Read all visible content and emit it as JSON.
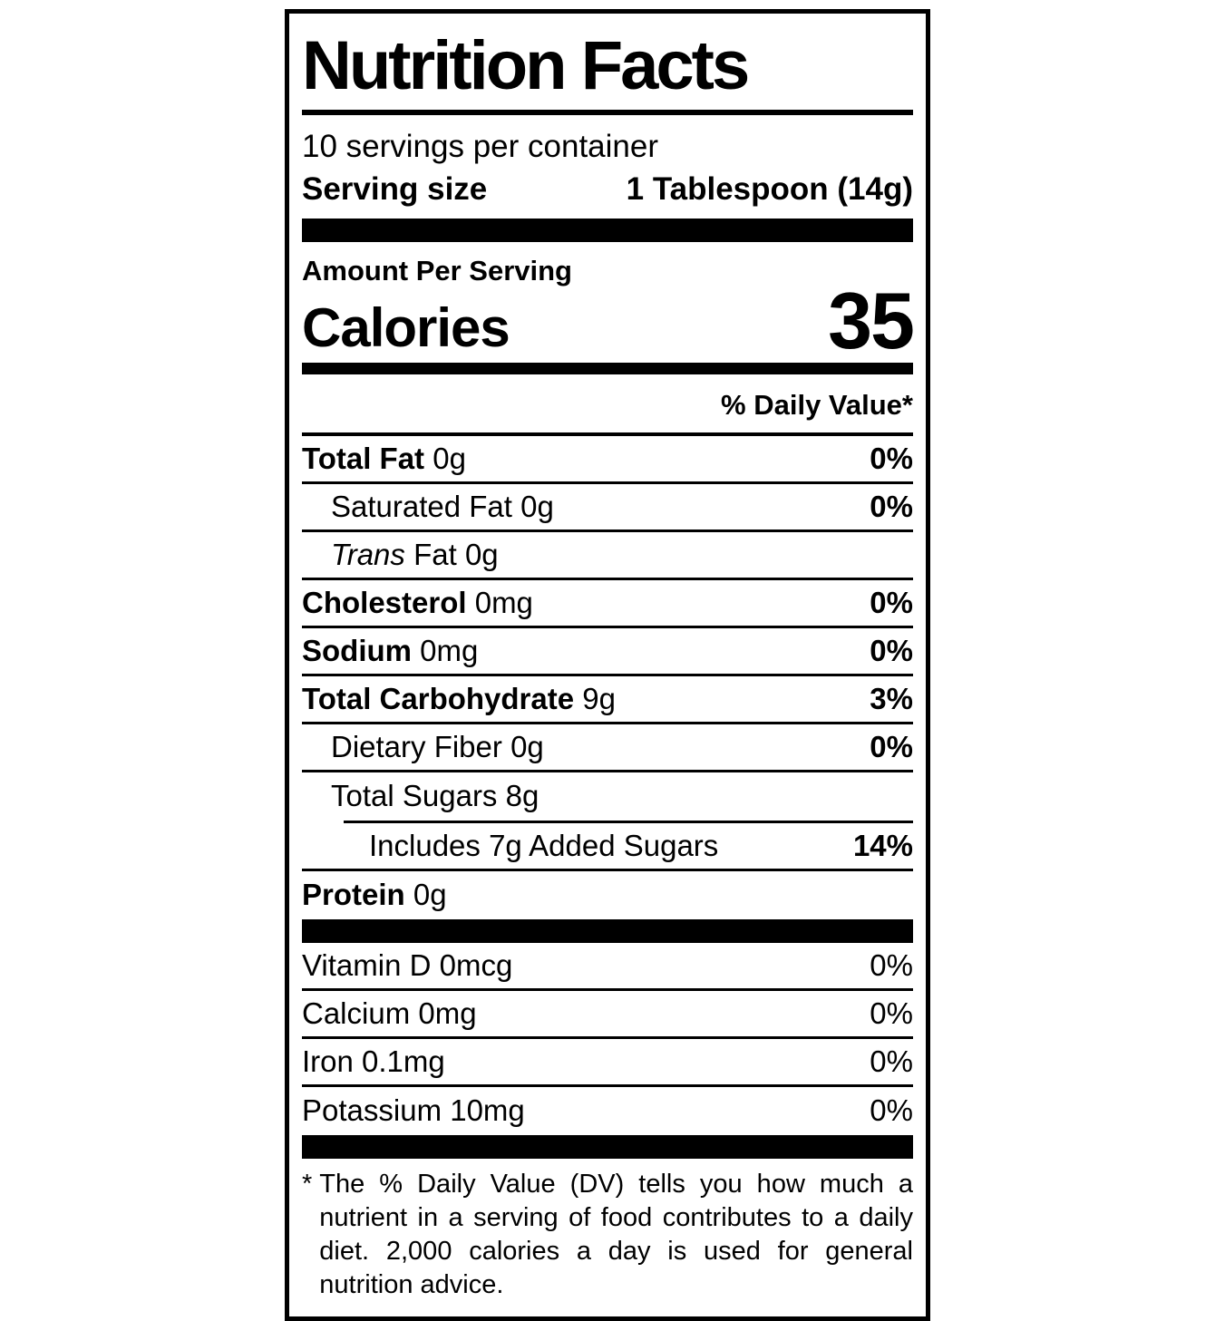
{
  "label": {
    "title": "Nutrition Facts",
    "servings_per_container": "10 servings per container",
    "serving_size_label": "Serving size",
    "serving_size_value": "1 Tablespoon (14g)",
    "amount_per_serving": "Amount Per Serving",
    "calories_label": "Calories",
    "calories_value": "35",
    "daily_value_header": "% Daily Value*",
    "rows": [
      {
        "name": "Total Fat",
        "amount": "0g",
        "dv": "0%"
      },
      {
        "name": "Saturated Fat",
        "amount": "0g",
        "dv": "0%"
      },
      {
        "name_italic": "Trans",
        "name": "Fat",
        "amount": "0g",
        "dv": ""
      },
      {
        "name": "Cholesterol",
        "amount": "0mg",
        "dv": "0%"
      },
      {
        "name": "Sodium",
        "amount": "0mg",
        "dv": "0%"
      },
      {
        "name": "Total Carbohydrate",
        "amount": "9g",
        "dv": "3%"
      },
      {
        "name": "Dietary Fiber",
        "amount": "0g",
        "dv": "0%"
      },
      {
        "name": "Total Sugars",
        "amount": "8g",
        "dv": ""
      },
      {
        "name": "Includes 7g Added Sugars",
        "amount": "",
        "dv": "14%"
      },
      {
        "name": "Protein",
        "amount": "0g",
        "dv": ""
      }
    ],
    "vitamins": [
      {
        "name": "Vitamin D 0mcg",
        "dv": "0%"
      },
      {
        "name": "Calcium 0mg",
        "dv": "0%"
      },
      {
        "name": "Iron 0.1mg",
        "dv": "0%"
      },
      {
        "name": "Potassium 10mg",
        "dv": "0%"
      }
    ],
    "footnote_marker": "*",
    "footnote_text": "The % Daily Value (DV) tells you how much a nutrient in a serving of food contributes to a daily diet. 2,000 calories a day is used for general nutrition advice."
  }
}
